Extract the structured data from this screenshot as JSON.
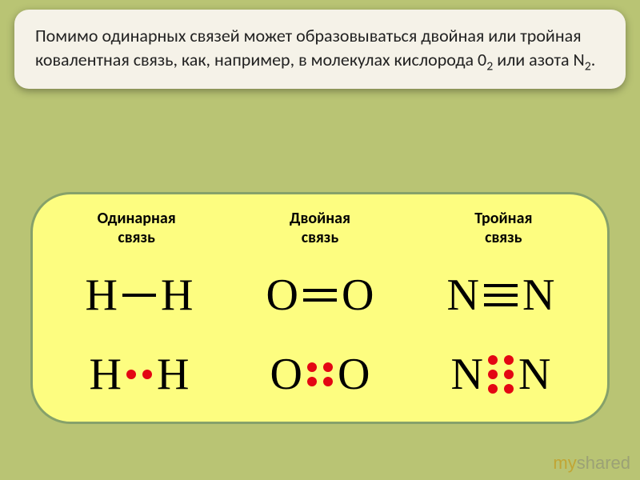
{
  "text_card": {
    "before_o2": "Помимо одинарных связей может образовываться двойная или тройная ковалентная связь, как, например, в молекулах кислорода 0",
    "o2_sub": "2",
    "between": " или азота N",
    "n2_sub": "2",
    "after": "."
  },
  "diagram": {
    "background": "#fdfd80",
    "border_color": "#86a16a",
    "heading_fontsize": 20,
    "formula_fontsize": 56,
    "bond_color": "#000000",
    "dot_color": "#e30613",
    "columns": [
      {
        "title_l1": "Одинарная",
        "title_l2": "связь",
        "element": "H",
        "bond_count": 1,
        "dot_pairs": 1
      },
      {
        "title_l1": "Двойная",
        "title_l2": "связь",
        "element": "O",
        "bond_count": 2,
        "dot_pairs": 2
      },
      {
        "title_l1": "Тройная",
        "title_l2": "связь",
        "element": "N",
        "bond_count": 3,
        "dot_pairs": 3
      }
    ]
  },
  "watermark": {
    "part1": "my",
    "part2": "shared"
  },
  "colors": {
    "page_bg": "#b9c474",
    "card_bg": "#f5f2e8",
    "text": "#222222"
  }
}
